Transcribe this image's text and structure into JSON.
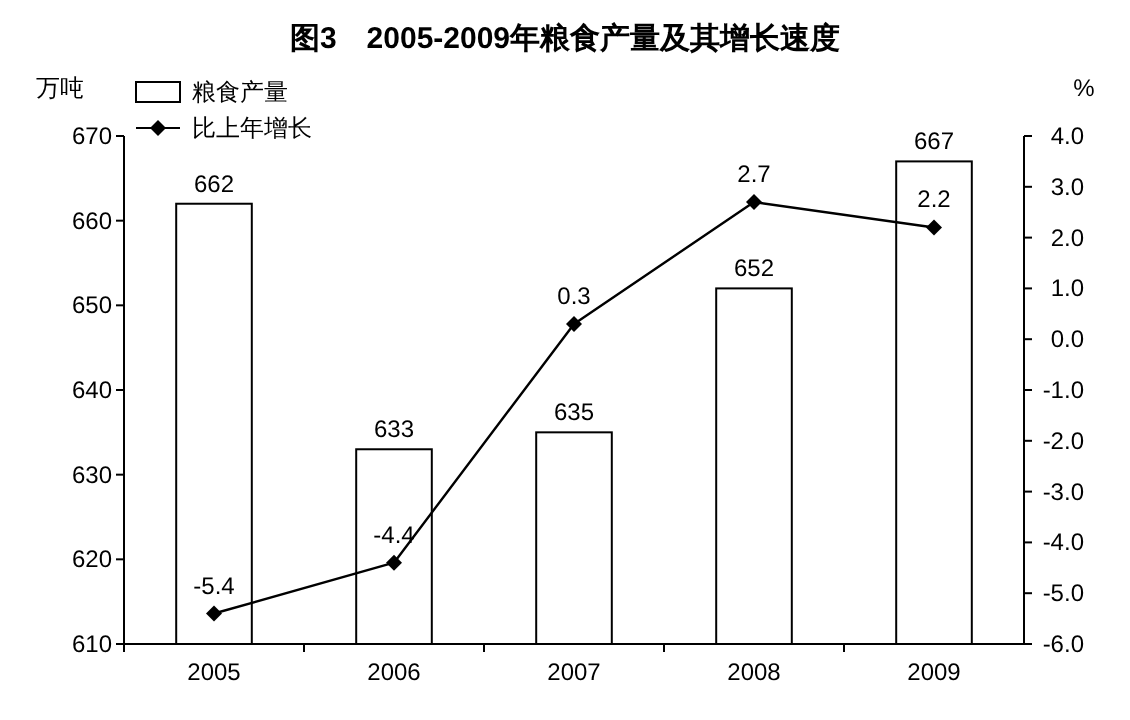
{
  "chart_data": {
    "type": "bar",
    "title": "图3　2005-2009年粮食产量及其增长速度",
    "ylabel": "万吨",
    "y2label": "%",
    "categories": [
      "2005",
      "2006",
      "2007",
      "2008",
      "2009"
    ],
    "series": [
      {
        "name": "粮食产量",
        "color": "#ffffff",
        "values": [
          662,
          633,
          635,
          652,
          667
        ]
      },
      {
        "name": "比上年增长",
        "type": "line",
        "axis": "y2",
        "color": "#000000",
        "marker": "diamond",
        "values": [
          -5.4,
          -4.4,
          0.3,
          2.7,
          2.2
        ]
      }
    ],
    "ylim": [
      610,
      670
    ],
    "yticks": [
      610,
      620,
      630,
      640,
      650,
      660,
      670
    ],
    "y2lim": [
      -6,
      4
    ],
    "y2ticks": [
      {
        "value": 4,
        "label": "4.0"
      },
      {
        "value": 3,
        "label": "3.0"
      },
      {
        "value": 2,
        "label": "2.0"
      },
      {
        "value": 1,
        "label": "1.0"
      },
      {
        "value": 0,
        "label": "0.0"
      },
      {
        "value": -1,
        "label": "-1.0"
      },
      {
        "value": -2,
        "label": "-2.0"
      },
      {
        "value": -3,
        "label": "-3.0"
      },
      {
        "value": -4,
        "label": "-4.0"
      },
      {
        "value": -5,
        "label": "-5.0"
      },
      {
        "value": -6,
        "label": "-6.0"
      }
    ],
    "data_labels": true,
    "grid": false,
    "legend": "top left"
  }
}
